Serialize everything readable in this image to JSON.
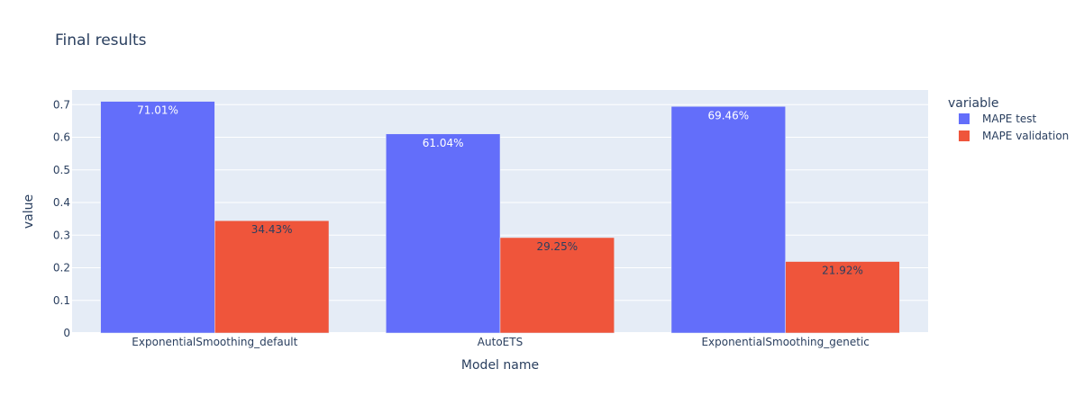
{
  "chart_data": {
    "type": "bar",
    "title": "Final results",
    "xlabel": "Model name",
    "ylabel": "value",
    "categories": [
      "ExponentialSmoothing_default",
      "AutoETS",
      "ExponentialSmoothing_genetic"
    ],
    "series": [
      {
        "name": "MAPE test",
        "color": "#636efa",
        "values": [
          0.7101,
          0.6104,
          0.6946
        ],
        "labels": [
          "71.01%",
          "61.04%",
          "69.46%"
        ]
      },
      {
        "name": "MAPE validation",
        "color": "#ef553b",
        "values": [
          0.3443,
          0.2925,
          0.2192
        ],
        "labels": [
          "34.43%",
          "29.25%",
          "21.92%"
        ]
      }
    ],
    "ylim": [
      0,
      0.745
    ],
    "yticks": [
      "0",
      "0.1",
      "0.2",
      "0.3",
      "0.4",
      "0.5",
      "0.6",
      "0.7"
    ],
    "legend_title": "variable",
    "legend_position": "right",
    "grid": true,
    "plot_background": "#e5ecf6"
  }
}
